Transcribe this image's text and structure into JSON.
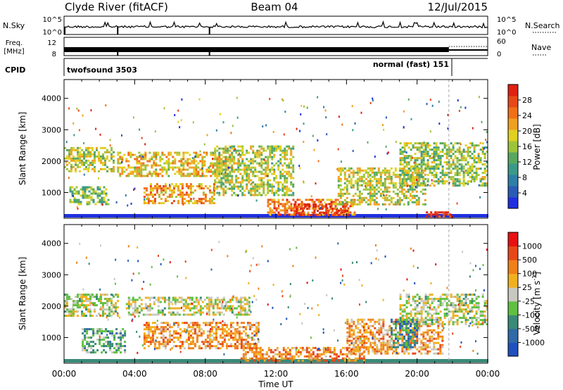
{
  "header": {
    "station": "Clyde River (fitACF)",
    "beam": "Beam 04",
    "date": "12/Jul/2015"
  },
  "strips": {
    "nsky": {
      "label": "N.Sky",
      "ticks": [
        "10^5",
        "10^0"
      ]
    },
    "nsearch": {
      "label": "N.Search",
      "ticks": [
        "10^5",
        "10^0"
      ]
    },
    "freq": {
      "label_line1": "Freq.",
      "label_line2": "[MHz]",
      "ticks": [
        "12",
        "8"
      ]
    },
    "nave": {
      "label": "Nave",
      "ticks": [
        "60",
        "0"
      ]
    },
    "cpid": {
      "label": "CPID",
      "segments": [
        {
          "name": "twofsound 3503",
          "start": "00:00",
          "end": "21:50"
        },
        {
          "name": "normal (fast) 151",
          "start": "21:50",
          "end": "24:00"
        }
      ]
    }
  },
  "chart_data": [
    {
      "type": "heatmap",
      "title": "",
      "ylabel": "Slant Range [km]",
      "ylim": [
        180,
        4600
      ],
      "yticks": [
        "1000",
        "2000",
        "3000",
        "4000"
      ],
      "xlim_hours": [
        0,
        24
      ],
      "colorbar": {
        "label": "Power [dB]",
        "range": [
          0,
          32
        ],
        "ticks": [
          "4",
          "8",
          "12",
          "16",
          "20",
          "24",
          "28"
        ],
        "colors": [
          "#2030e0",
          "#2a5cb6",
          "#2e7fa8",
          "#3a9a88",
          "#58a860",
          "#9cc43a",
          "#e0d020",
          "#f0a020",
          "#f07018",
          "#e84818",
          "#e02010"
        ]
      },
      "echo_regions": [
        {
          "t0": 0.0,
          "t1": 2.8,
          "r0": 1650,
          "r1": 2450,
          "level": 0.55
        },
        {
          "t0": 0.3,
          "t1": 2.5,
          "r0": 600,
          "r1": 1200,
          "level": 0.45
        },
        {
          "t0": 3.0,
          "t1": 9.5,
          "r0": 1500,
          "r1": 2300,
          "level": 0.62
        },
        {
          "t0": 4.5,
          "t1": 8.5,
          "r0": 650,
          "r1": 1300,
          "level": 0.68
        },
        {
          "t0": 8.5,
          "t1": 13.0,
          "r0": 900,
          "r1": 2500,
          "level": 0.52
        },
        {
          "t0": 11.5,
          "t1": 16.5,
          "r0": 300,
          "r1": 800,
          "level": 0.78
        },
        {
          "t0": 13.0,
          "t1": 16.0,
          "r0": 250,
          "r1": 650,
          "level": 0.9
        },
        {
          "t0": 15.5,
          "t1": 20.5,
          "r0": 650,
          "r1": 1800,
          "level": 0.55
        },
        {
          "t0": 19.0,
          "t1": 24.0,
          "r0": 1200,
          "r1": 2600,
          "level": 0.5
        },
        {
          "t0": 20.5,
          "t1": 22.0,
          "r0": 230,
          "r1": 400,
          "level": 0.92
        }
      ]
    },
    {
      "type": "heatmap",
      "title": "",
      "ylabel": "Slant Range [km]",
      "ylim": [
        180,
        4600
      ],
      "yticks": [
        "1000",
        "2000",
        "3000",
        "4000"
      ],
      "xlim_hours": [
        0,
        24
      ],
      "colorbar": {
        "label": "Velocity [m s-1]",
        "ticks": [
          "1000",
          "500",
          "100",
          "25",
          "-25",
          "-100",
          "-500",
          "-1000"
        ],
        "colors": [
          "#2050c0",
          "#306aa8",
          "#3a8a78",
          "#60c040",
          "#c8c8c0",
          "#f0b020",
          "#f08018",
          "#e84818",
          "#e81010"
        ]
      },
      "echo_regions": [
        {
          "t0": 0.0,
          "t1": 3.0,
          "r0": 1700,
          "r1": 2400,
          "level": 0.48
        },
        {
          "t0": 1.0,
          "t1": 3.5,
          "r0": 500,
          "r1": 1300,
          "level": 0.35
        },
        {
          "t0": 3.5,
          "t1": 10.5,
          "r0": 1700,
          "r1": 2300,
          "level": 0.5
        },
        {
          "t0": 4.5,
          "t1": 11.0,
          "r0": 650,
          "r1": 1500,
          "level": 0.68
        },
        {
          "t0": 10.0,
          "t1": 17.0,
          "r0": 250,
          "r1": 700,
          "level": 0.72
        },
        {
          "t0": 16.0,
          "t1": 21.5,
          "r0": 500,
          "r1": 1600,
          "level": 0.66
        },
        {
          "t0": 19.0,
          "t1": 24.0,
          "r0": 1400,
          "r1": 2400,
          "level": 0.48
        },
        {
          "t0": 18.5,
          "t1": 20.0,
          "r0": 700,
          "r1": 1600,
          "level": 0.25
        }
      ]
    }
  ],
  "xaxis": {
    "label": "Time UT",
    "ticks": [
      "00:00",
      "04:00",
      "08:00",
      "12:00",
      "16:00",
      "20:00",
      "00:00"
    ]
  }
}
